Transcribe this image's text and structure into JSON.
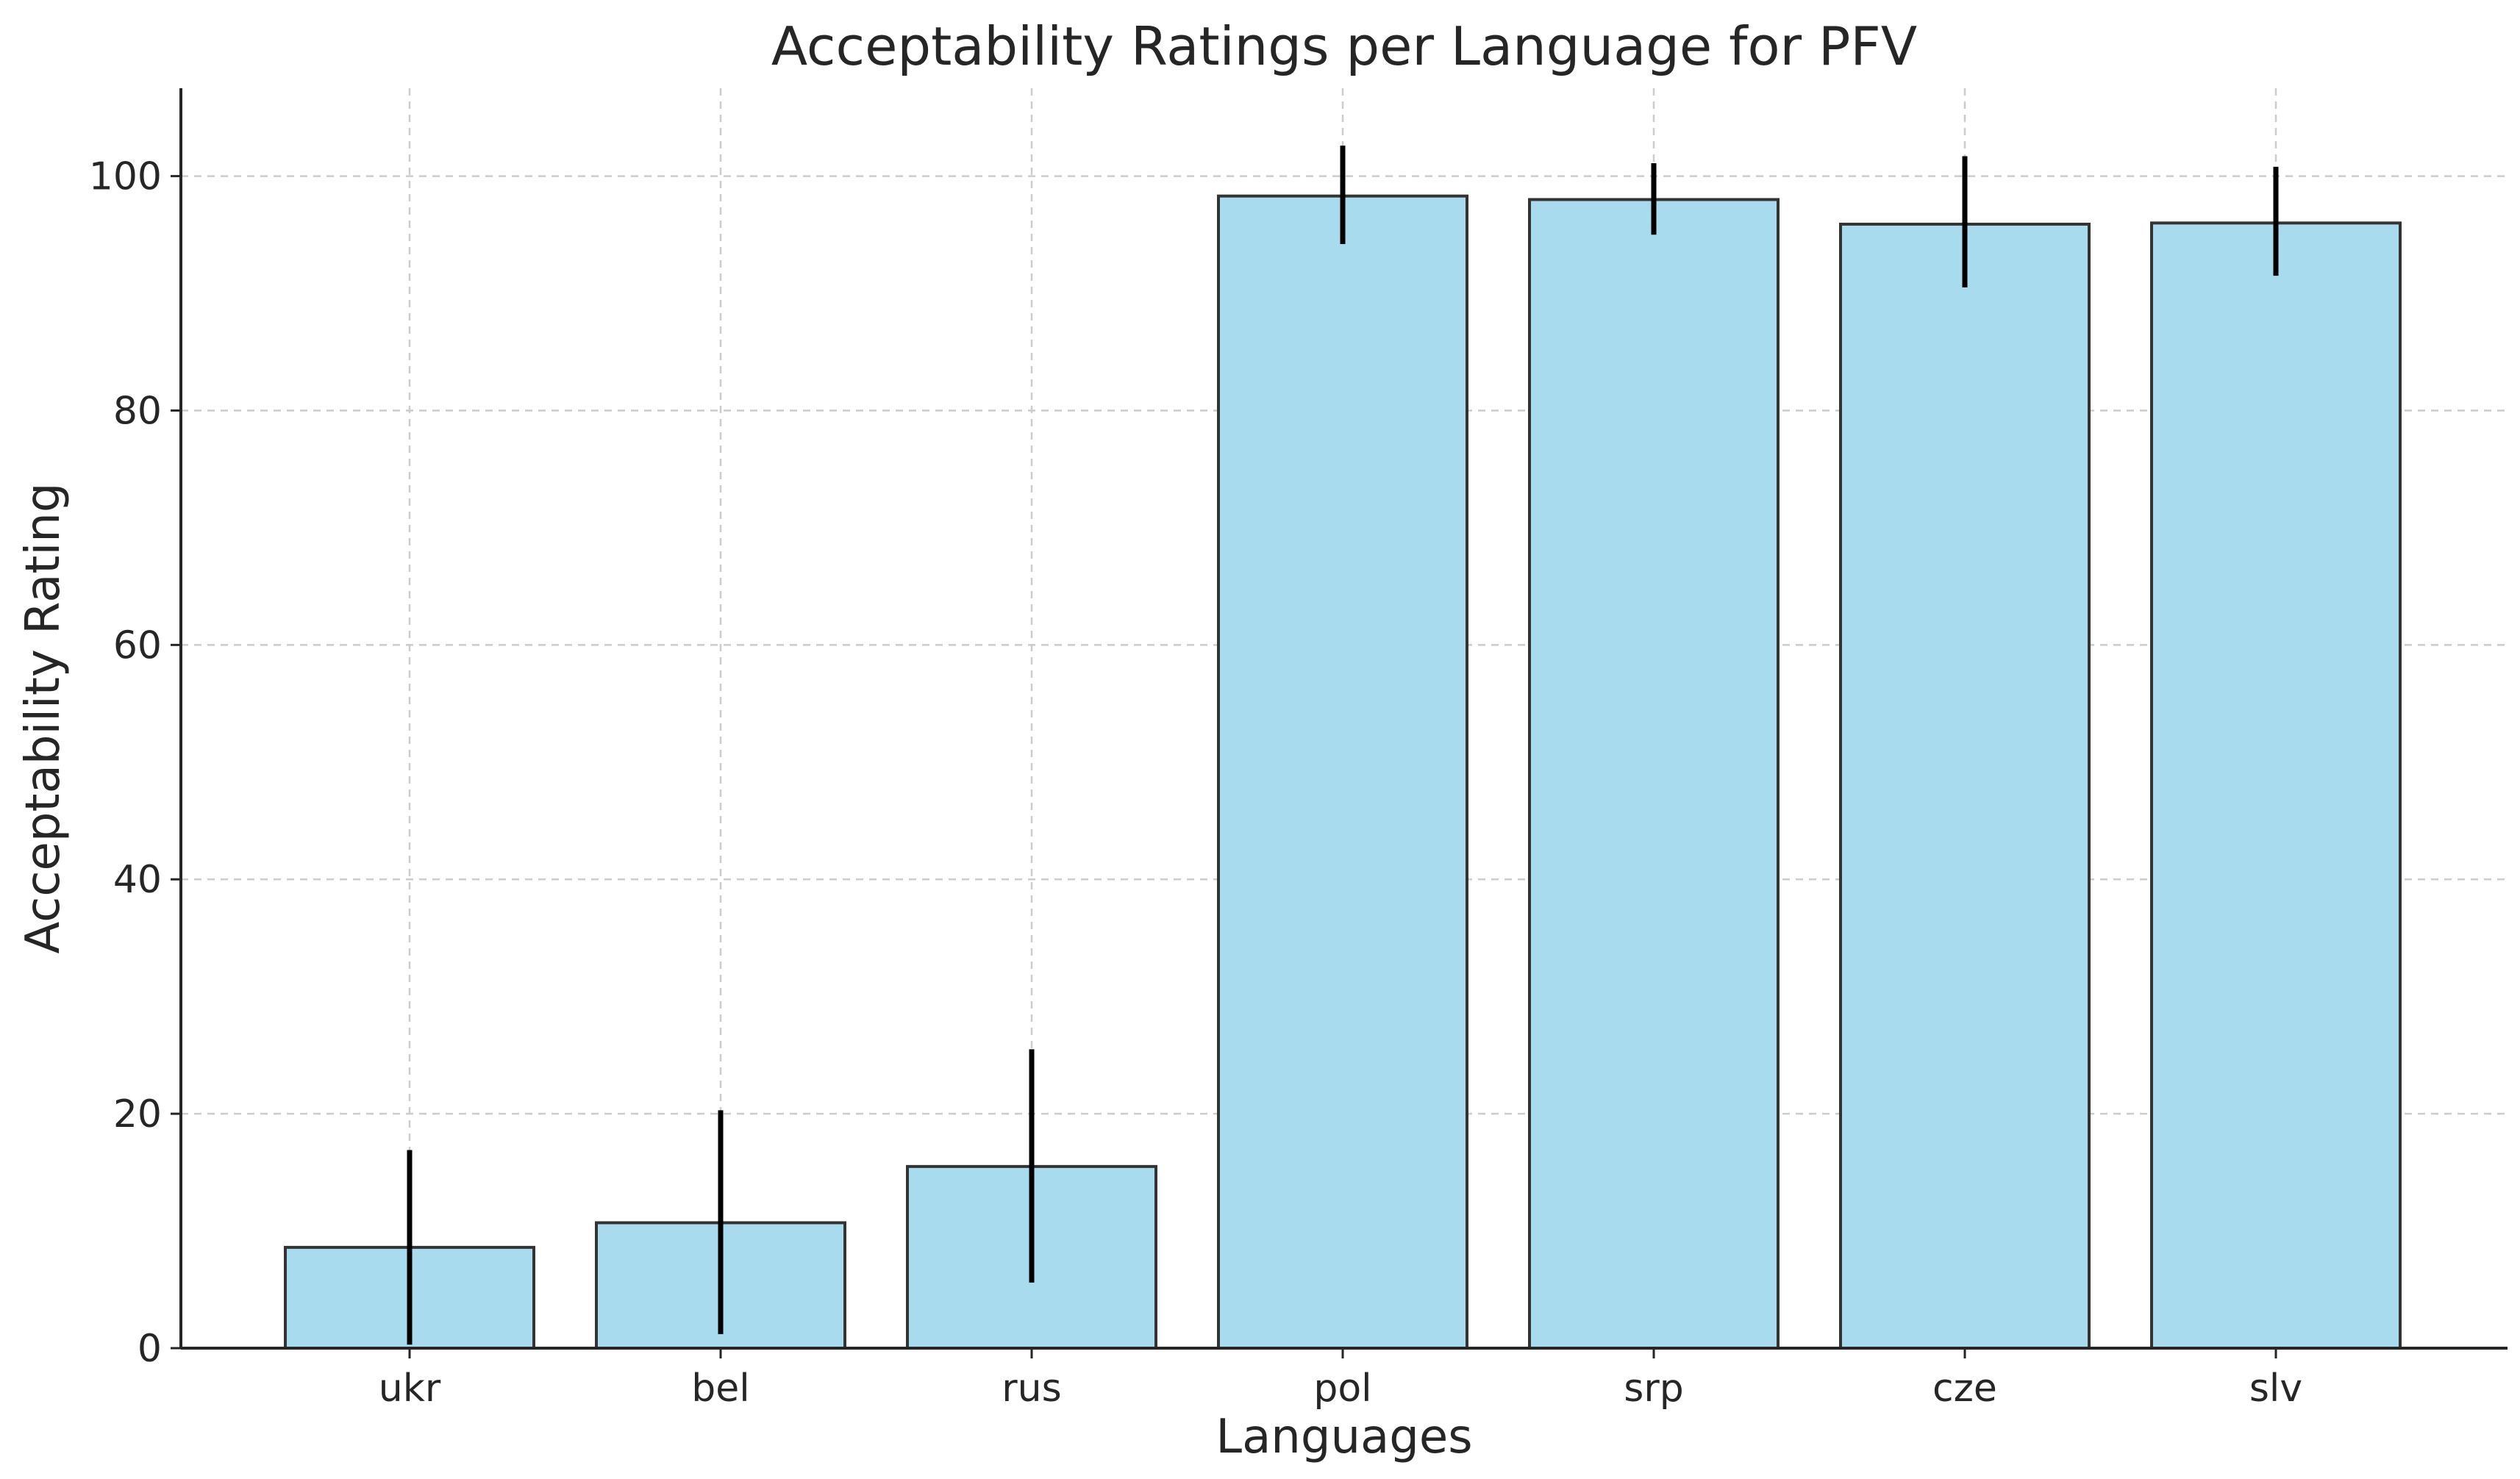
{
  "chart_data": {
    "type": "bar",
    "title": "Acceptability Ratings per Language for PFV",
    "xlabel": "Languages",
    "ylabel": "Acceptability Rating",
    "categories": [
      "ukr",
      "bel",
      "rus",
      "pol",
      "srp",
      "cze",
      "slv"
    ],
    "values": [
      8.6,
      10.7,
      15.5,
      98.3,
      98.0,
      95.9,
      96.0
    ],
    "error_low": [
      0.3,
      1.2,
      5.6,
      94.2,
      95.0,
      90.5,
      91.5
    ],
    "error_high": [
      16.9,
      20.3,
      25.5,
      102.6,
      101.1,
      101.7,
      100.8
    ],
    "yticks": [
      0,
      20,
      40,
      60,
      80,
      100
    ],
    "ylim": [
      0,
      107.5
    ],
    "grid": true,
    "bar_color": "#a9dbef",
    "bar_edge_color": "#333333",
    "error_color": "#000000"
  }
}
